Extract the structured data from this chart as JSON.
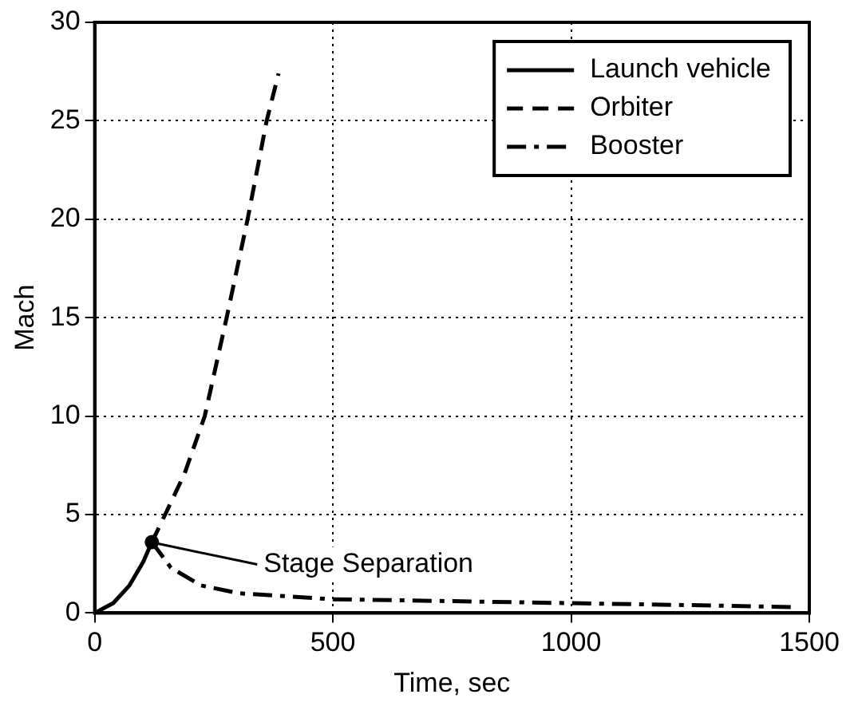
{
  "chart_data": {
    "type": "line",
    "xlabel": "Time, sec",
    "ylabel": "Mach",
    "xlim": [
      0,
      1500
    ],
    "xticks": [
      0,
      500,
      1000,
      1500
    ],
    "ylim": [
      0,
      30
    ],
    "yticks": [
      0,
      5,
      10,
      15,
      20,
      25,
      30
    ],
    "grid": true,
    "legend": "top right",
    "marker": "none",
    "series": [
      {
        "name": "Launch vehicle",
        "color": "#000000",
        "line_style": "solid",
        "x": [
          0,
          39,
          73,
          102,
          120
        ],
        "values": [
          0,
          0.5,
          1.4,
          2.6,
          3.6
        ]
      },
      {
        "name": "Orbiter",
        "color": "#000000",
        "line_style": "dashed",
        "x": [
          120,
          148,
          189,
          231,
          277,
          321,
          361,
          386
        ],
        "values": [
          3.6,
          5,
          7.1,
          10,
          15,
          20,
          25,
          27.4
        ]
      },
      {
        "name": "Booster",
        "color": "#000000",
        "line_style": "dashdot",
        "x": [
          120,
          160,
          223,
          303,
          499,
          750,
          1000,
          1250,
          1470
        ],
        "values": [
          3.6,
          2.3,
          1.4,
          1,
          0.7,
          0.6,
          0.5,
          0.4,
          0.3
        ]
      }
    ],
    "annotations": [
      {
        "text": "Stage Separation",
        "x": 120,
        "y": 3.6
      }
    ]
  }
}
